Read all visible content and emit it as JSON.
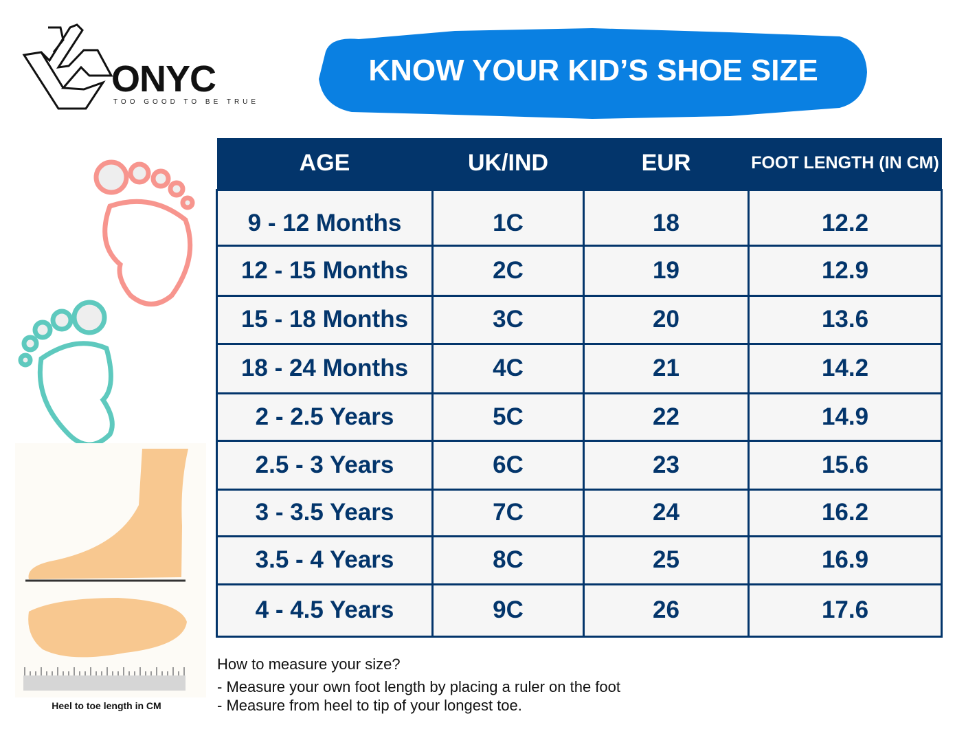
{
  "brand": {
    "name": "ONYC",
    "tagline": "TOO GOOD TO BE TRUE"
  },
  "banner": {
    "title": "KNOW YOUR KID’S SHOE SIZE",
    "color": "#0a80e2"
  },
  "table": {
    "headers": [
      "AGE",
      "UK/IND",
      "EUR",
      "FOOT LENGTH (IN CM)"
    ],
    "rows": [
      [
        "9 - 12 Months",
        "1C",
        "18",
        "12.2"
      ],
      [
        "12 - 15 Months",
        "2C",
        "19",
        "12.9"
      ],
      [
        "15 - 18 Months",
        "3C",
        "20",
        "13.6"
      ],
      [
        "18 - 24 Months",
        "4C",
        "21",
        "14.2"
      ],
      [
        "2 - 2.5 Years",
        "5C",
        "22",
        "14.9"
      ],
      [
        "2.5 - 3 Years",
        "6C",
        "23",
        "15.6"
      ],
      [
        "3 - 3.5 Years",
        "7C",
        "24",
        "16.2"
      ],
      [
        "3.5 - 4 Years",
        "8C",
        "25",
        "16.9"
      ],
      [
        "4 - 4.5 Years",
        "9C",
        "26",
        "17.6"
      ]
    ],
    "header_color": "#03356b"
  },
  "instructions": {
    "title": "How to measure your size?",
    "lines": [
      "- Measure your own foot length by placing a ruler on the foot",
      "- Measure from heel to tip of your longest toe."
    ]
  },
  "illustration": {
    "caption": "Heel to toe length in CM",
    "footprint_colors": [
      "#f7958e",
      "#5ec9be"
    ]
  }
}
